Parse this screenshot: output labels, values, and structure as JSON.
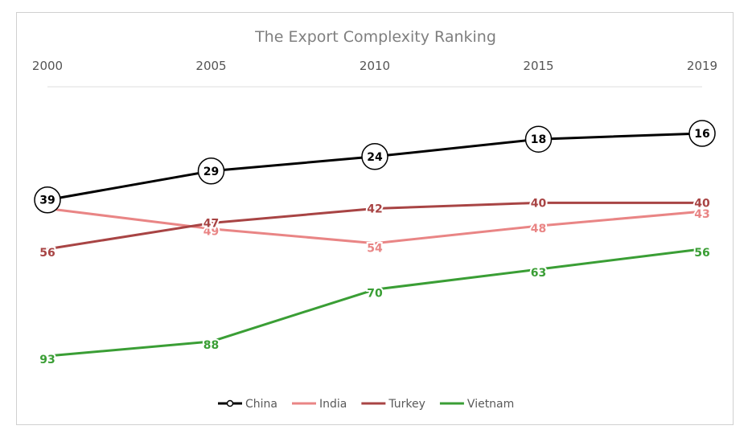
{
  "chart_data": {
    "type": "line",
    "title": "The Export Complexity Ranking",
    "xlabel": "",
    "ylabel": "",
    "x": [
      "2000",
      "2005",
      "2010",
      "2015",
      "2019"
    ],
    "y_axis": {
      "reversed": true,
      "ylim": [
        10,
        100
      ],
      "visible": false
    },
    "grid": false,
    "legend_position": "bottom",
    "series": [
      {
        "name": "China",
        "values": [
          39,
          29,
          24,
          18,
          16
        ],
        "color": "#000000",
        "marker": "circle"
      },
      {
        "name": "India",
        "values": [
          42,
          49,
          54,
          48,
          43
        ],
        "color": "#e98585",
        "marker": "none"
      },
      {
        "name": "Turkey",
        "values": [
          56,
          47,
          42,
          40,
          40
        ],
        "color": "#a84444",
        "marker": "none"
      },
      {
        "name": "Vietnam",
        "values": [
          93,
          88,
          70,
          63,
          56
        ],
        "color": "#3a9e35",
        "marker": "none"
      }
    ]
  }
}
